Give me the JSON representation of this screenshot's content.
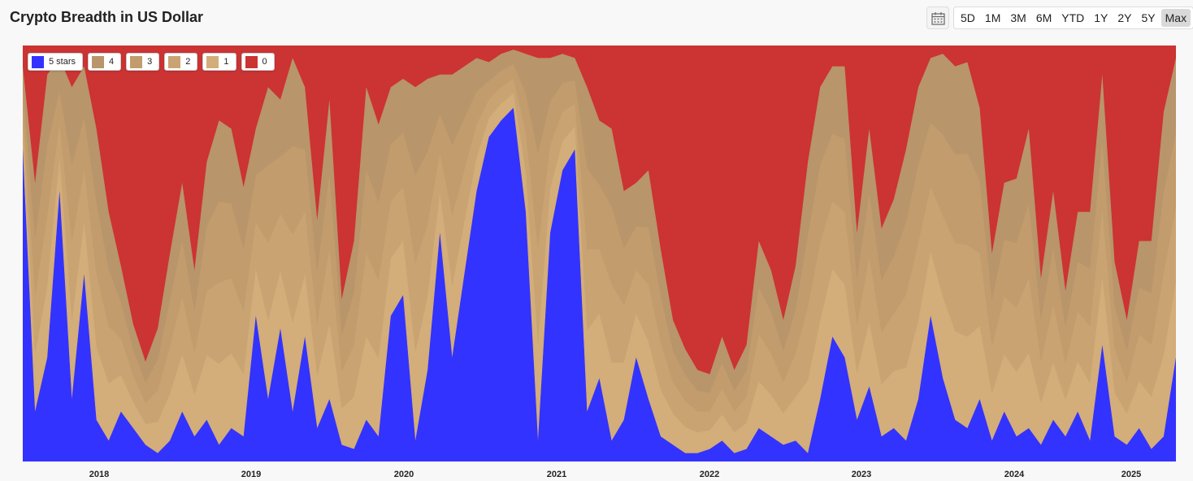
{
  "title": "Crypto Breadth in US Dollar",
  "toolbar": {
    "calendar_icon": "calendar-icon",
    "ranges": [
      "5D",
      "1M",
      "3M",
      "6M",
      "YTD",
      "1Y",
      "2Y",
      "5Y",
      "Max"
    ],
    "active_range": "Max"
  },
  "chart_data": {
    "type": "area",
    "stacked": true,
    "normalized": true,
    "legend_position": "top-left",
    "grid": false,
    "x_ticks": [
      "2018",
      "2019",
      "2020",
      "2021",
      "2022",
      "2023",
      "2024",
      "2025"
    ],
    "x_range": [
      "2017-07",
      "2025-05"
    ],
    "y_range": [
      0,
      1
    ],
    "series": [
      {
        "name": "5 stars",
        "color": "#3333ff"
      },
      {
        "name": "4",
        "color": "#b8956a"
      },
      {
        "name": "3",
        "color": "#c29c6c"
      },
      {
        "name": "2",
        "color": "#c9a472"
      },
      {
        "name": "1",
        "color": "#d3ad7a"
      },
      {
        "name": "0",
        "color": "#cc3333"
      }
    ],
    "x": [
      "2017-07",
      "2017-08",
      "2017-09",
      "2017-10",
      "2017-11",
      "2017-12",
      "2018-01",
      "2018-02",
      "2018-03",
      "2018-04",
      "2018-05",
      "2018-06",
      "2018-07",
      "2018-08",
      "2018-09",
      "2018-10",
      "2018-11",
      "2018-12",
      "2019-01",
      "2019-02",
      "2019-03",
      "2019-04",
      "2019-05",
      "2019-06",
      "2019-07",
      "2019-08",
      "2019-09",
      "2019-10",
      "2019-11",
      "2019-12",
      "2020-01",
      "2020-02",
      "2020-03",
      "2020-04",
      "2020-05",
      "2020-06",
      "2020-07",
      "2020-08",
      "2020-09",
      "2020-10",
      "2020-11",
      "2020-12",
      "2021-01",
      "2021-02",
      "2021-03",
      "2021-04",
      "2021-05",
      "2021-06",
      "2021-07",
      "2021-08",
      "2021-09",
      "2021-10",
      "2021-11",
      "2021-12",
      "2022-01",
      "2022-02",
      "2022-03",
      "2022-04",
      "2022-05",
      "2022-06",
      "2022-07",
      "2022-08",
      "2022-09",
      "2022-10",
      "2022-11",
      "2022-12",
      "2023-01",
      "2023-02",
      "2023-03",
      "2023-04",
      "2023-05",
      "2023-06",
      "2023-07",
      "2023-08",
      "2023-09",
      "2023-10",
      "2023-11",
      "2023-12",
      "2024-01",
      "2024-02",
      "2024-03",
      "2024-04",
      "2024-05",
      "2024-06",
      "2024-07",
      "2024-08",
      "2024-09",
      "2024-10",
      "2024-11",
      "2024-12",
      "2025-01",
      "2025-02",
      "2025-03",
      "2025-04",
      "2025-05"
    ],
    "five_stars": [
      0.75,
      0.12,
      0.25,
      0.65,
      0.15,
      0.45,
      0.1,
      0.05,
      0.12,
      0.08,
      0.04,
      0.02,
      0.05,
      0.12,
      0.06,
      0.1,
      0.04,
      0.08,
      0.06,
      0.35,
      0.15,
      0.32,
      0.12,
      0.3,
      0.08,
      0.15,
      0.04,
      0.03,
      0.1,
      0.06,
      0.35,
      0.4,
      0.05,
      0.22,
      0.55,
      0.25,
      0.45,
      0.65,
      0.78,
      0.82,
      0.85,
      0.6,
      0.05,
      0.55,
      0.7,
      0.75,
      0.12,
      0.2,
      0.05,
      0.1,
      0.25,
      0.15,
      0.06,
      0.04,
      0.02,
      0.02,
      0.03,
      0.05,
      0.02,
      0.03,
      0.08,
      0.06,
      0.04,
      0.05,
      0.02,
      0.15,
      0.3,
      0.25,
      0.1,
      0.18,
      0.06,
      0.08,
      0.05,
      0.15,
      0.35,
      0.2,
      0.1,
      0.08,
      0.15,
      0.05,
      0.12,
      0.06,
      0.08,
      0.04,
      0.1,
      0.06,
      0.12,
      0.05,
      0.28,
      0.06,
      0.04,
      0.08,
      0.03,
      0.06,
      0.25
    ],
    "mid_stars": [
      0.2,
      0.55,
      0.68,
      0.32,
      0.75,
      0.5,
      0.7,
      0.55,
      0.35,
      0.25,
      0.2,
      0.3,
      0.45,
      0.55,
      0.4,
      0.62,
      0.78,
      0.72,
      0.6,
      0.45,
      0.75,
      0.55,
      0.85,
      0.6,
      0.5,
      0.72,
      0.35,
      0.5,
      0.8,
      0.75,
      0.55,
      0.52,
      0.85,
      0.7,
      0.38,
      0.68,
      0.5,
      0.32,
      0.18,
      0.16,
      0.14,
      0.38,
      0.92,
      0.42,
      0.28,
      0.22,
      0.78,
      0.62,
      0.75,
      0.55,
      0.42,
      0.55,
      0.45,
      0.3,
      0.25,
      0.2,
      0.18,
      0.25,
      0.2,
      0.25,
      0.45,
      0.4,
      0.3,
      0.42,
      0.7,
      0.75,
      0.65,
      0.7,
      0.45,
      0.62,
      0.5,
      0.55,
      0.7,
      0.75,
      0.62,
      0.78,
      0.85,
      0.88,
      0.7,
      0.45,
      0.55,
      0.62,
      0.72,
      0.4,
      0.55,
      0.35,
      0.48,
      0.55,
      0.65,
      0.42,
      0.3,
      0.45,
      0.5,
      0.78,
      0.72
    ]
  },
  "legend": [
    {
      "label": "5 stars",
      "color": "#3333ff"
    },
    {
      "label": "4",
      "color": "#b8956a"
    },
    {
      "label": "3",
      "color": "#c29c6c"
    },
    {
      "label": "2",
      "color": "#c9a472"
    },
    {
      "label": "1",
      "color": "#d3ad7a"
    },
    {
      "label": "0",
      "color": "#cc3333"
    }
  ]
}
